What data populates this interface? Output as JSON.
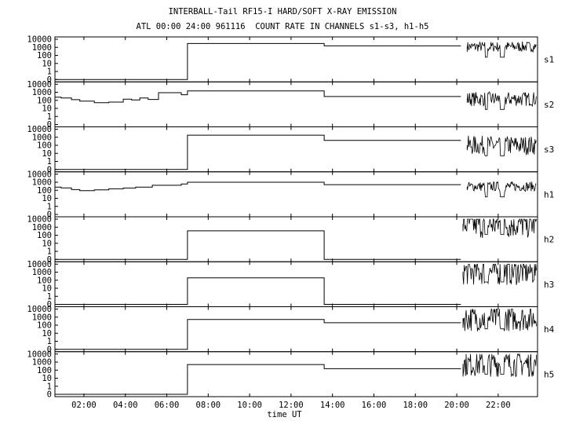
{
  "chart_data": {
    "type": "line",
    "title": "INTERBALL-Tail RF15-I HARD/SOFT X-RAY EMISSION",
    "subtitle": "ATL 00:00 24:00 961116  COUNT RATE IN CHANNELS s1-s3, h1-h5",
    "xlabel": "time UT",
    "x_ticks": [
      "02:00",
      "04:00",
      "06:00",
      "08:00",
      "10:00",
      "12:00",
      "14:00",
      "16:00",
      "18:00",
      "20:00",
      "22:00"
    ],
    "x_tick_hours": [
      2,
      4,
      6,
      8,
      10,
      12,
      14,
      16,
      18,
      20,
      22
    ],
    "x_range_hours": [
      0.6,
      23.9
    ],
    "y_scale": "log",
    "y_ticks": [
      "10000",
      "1000",
      "100",
      "10",
      "1",
      "0"
    ],
    "grid": false,
    "panels": [
      {
        "name": "s1",
        "segments": [
          [
            0.6,
            7.0,
            0
          ],
          [
            7.0,
            13.6,
            3000
          ],
          [
            13.6,
            20.2,
            1500
          ]
        ],
        "noisy_from": 20.5,
        "noise_level": 1200,
        "noise_spread": 1.3
      },
      {
        "name": "s2",
        "segments": [
          [
            0.6,
            0.9,
            250
          ],
          [
            0.9,
            1.4,
            200
          ],
          [
            1.4,
            1.8,
            120
          ],
          [
            1.8,
            2.5,
            80
          ],
          [
            2.5,
            3.2,
            50
          ],
          [
            3.2,
            3.9,
            60
          ],
          [
            3.9,
            4.3,
            140
          ],
          [
            4.3,
            4.7,
            110
          ],
          [
            4.7,
            5.1,
            200
          ],
          [
            5.1,
            5.6,
            130
          ],
          [
            5.6,
            6.7,
            900
          ],
          [
            6.7,
            7.0,
            500
          ],
          [
            7.0,
            13.6,
            1500
          ],
          [
            13.6,
            20.2,
            300
          ]
        ],
        "noisy_from": 20.5,
        "noise_level": 150,
        "noise_spread": 1.8
      },
      {
        "name": "s3",
        "segments": [
          [
            0.6,
            7.0,
            0
          ],
          [
            7.0,
            13.6,
            1800
          ],
          [
            13.6,
            20.2,
            400
          ]
        ],
        "noisy_from": 20.5,
        "noise_level": 100,
        "noise_spread": 2.4
      },
      {
        "name": "h1",
        "segments": [
          [
            0.6,
            0.9,
            250
          ],
          [
            0.9,
            1.4,
            200
          ],
          [
            1.4,
            1.8,
            120
          ],
          [
            1.8,
            2.5,
            90
          ],
          [
            2.5,
            3.2,
            110
          ],
          [
            3.2,
            3.9,
            150
          ],
          [
            3.9,
            4.5,
            190
          ],
          [
            4.5,
            5.3,
            250
          ],
          [
            5.3,
            6.7,
            420
          ],
          [
            6.7,
            7.0,
            600
          ],
          [
            7.0,
            13.6,
            1000
          ],
          [
            13.6,
            20.2,
            500
          ]
        ],
        "noisy_from": 20.5,
        "noise_level": 300,
        "noise_spread": 1.2
      },
      {
        "name": "h2",
        "segments": [
          [
            0.6,
            7.0,
            0
          ],
          [
            7.0,
            13.6,
            350
          ],
          [
            13.6,
            20.2,
            0
          ]
        ],
        "noisy_from": 20.3,
        "noise_level": 2500,
        "noise_spread": 3.6
      },
      {
        "name": "h3",
        "segments": [
          [
            0.6,
            7.0,
            0
          ],
          [
            7.0,
            13.6,
            200
          ],
          [
            13.6,
            20.2,
            0
          ]
        ],
        "noisy_from": 20.3,
        "noise_level": 1200,
        "noise_spread": 3.4
      },
      {
        "name": "h4",
        "segments": [
          [
            0.6,
            7.0,
            0
          ],
          [
            7.0,
            13.6,
            500
          ],
          [
            13.6,
            20.2,
            200
          ]
        ],
        "noisy_from": 20.3,
        "noise_level": 700,
        "noise_spread": 3.2
      },
      {
        "name": "h5",
        "segments": [
          [
            0.6,
            7.0,
            0
          ],
          [
            7.0,
            13.6,
            500
          ],
          [
            13.6,
            20.2,
            150
          ]
        ],
        "noisy_from": 20.3,
        "noise_level": 600,
        "noise_spread": 3.2
      }
    ]
  }
}
